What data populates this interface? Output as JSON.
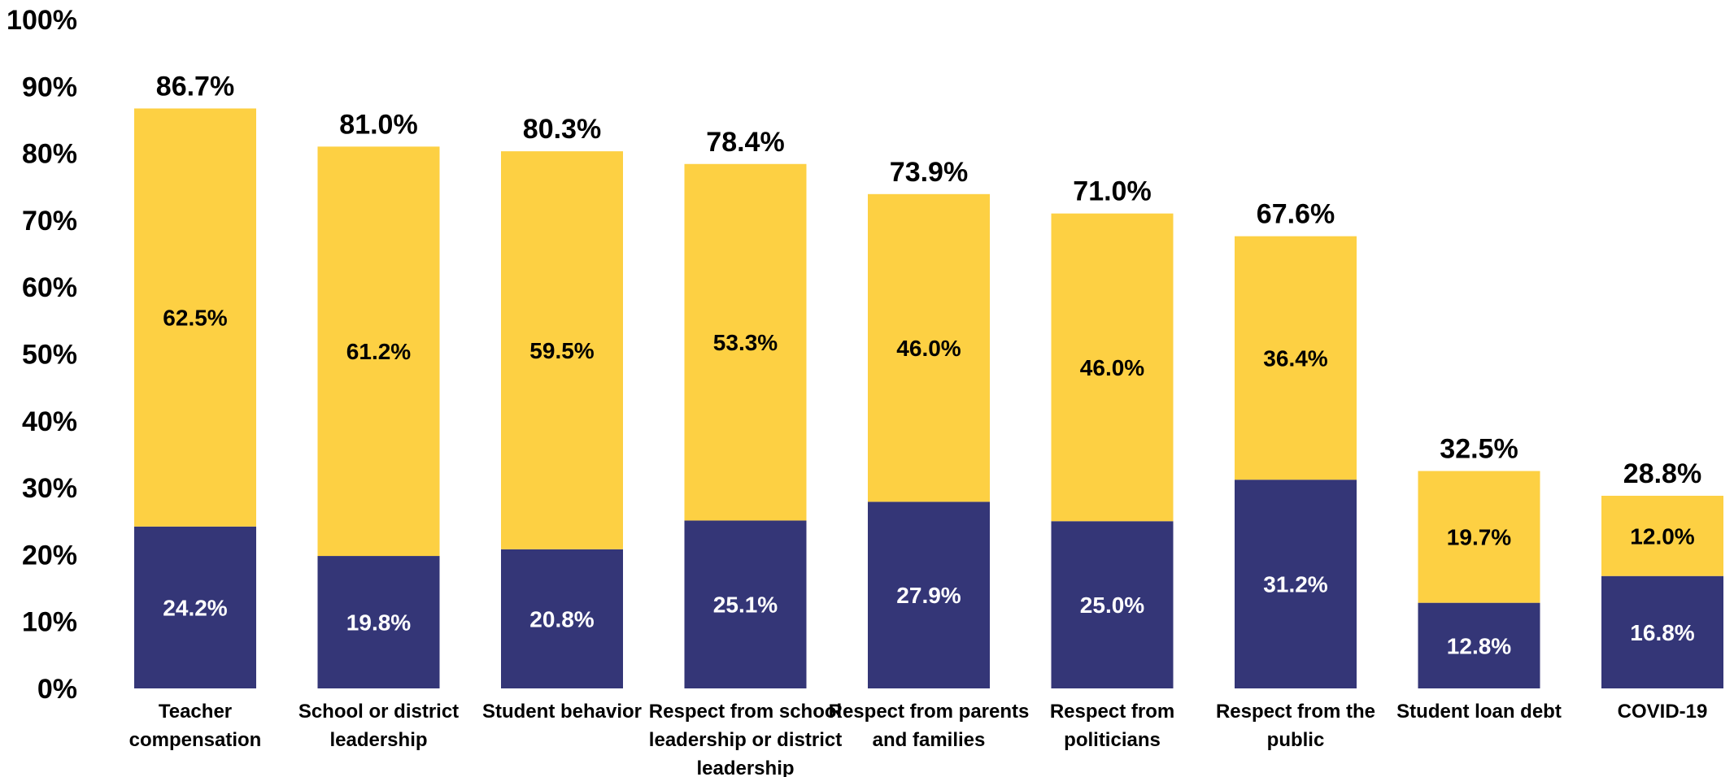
{
  "chart_data": {
    "type": "bar",
    "stacked": true,
    "title": "",
    "xlabel": "",
    "ylabel": "",
    "ylim": [
      0,
      100
    ],
    "yticks": [
      "0%",
      "10%",
      "20%",
      "30%",
      "40%",
      "50%",
      "60%",
      "70%",
      "80%",
      "90%",
      "100%"
    ],
    "categories": [
      [
        "Teacher",
        "compensation"
      ],
      [
        "School or district",
        "leadership"
      ],
      [
        "Student behavior"
      ],
      [
        "Respect from school",
        "leadership or district",
        "leadership"
      ],
      [
        "Respect from parents",
        "and families"
      ],
      [
        "Respect from",
        "politicians"
      ],
      [
        "Respect from the",
        "public"
      ],
      [
        "Student loan debt"
      ],
      [
        "COVID-19"
      ]
    ],
    "series": [
      {
        "name": "bottom",
        "color": "#343677",
        "values": [
          24.2,
          19.8,
          20.8,
          25.1,
          27.9,
          25.0,
          31.2,
          12.8,
          16.8
        ],
        "labels": [
          "24.2%",
          "19.8%",
          "20.8%",
          "25.1%",
          "27.9%",
          "25.0%",
          "31.2%",
          "12.8%",
          "16.8%"
        ]
      },
      {
        "name": "top",
        "color": "#FDD043",
        "values": [
          62.5,
          61.2,
          59.5,
          53.3,
          46.0,
          46.0,
          36.4,
          19.7,
          12.0
        ],
        "labels": [
          "62.5%",
          "61.2%",
          "59.5%",
          "53.3%",
          "46.0%",
          "46.0%",
          "36.4%",
          "19.7%",
          "12.0%"
        ]
      }
    ],
    "totals": [
      86.7,
      81.0,
      80.3,
      78.4,
      73.9,
      71.0,
      67.6,
      32.5,
      28.8
    ],
    "total_labels": [
      "86.7%",
      "81.0%",
      "80.3%",
      "78.4%",
      "73.9%",
      "71.0%",
      "67.6%",
      "32.5%",
      "28.8%"
    ]
  }
}
